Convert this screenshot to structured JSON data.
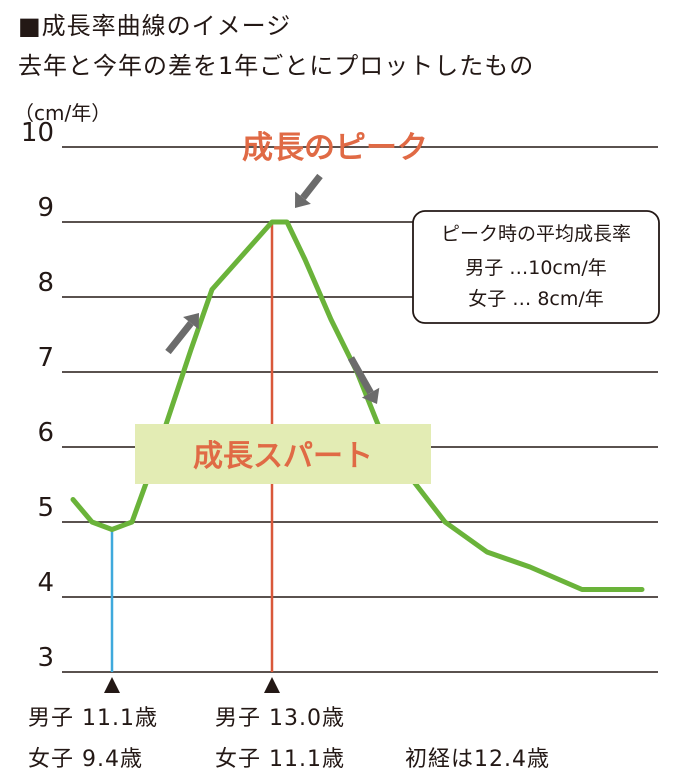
{
  "header": {
    "title": "■成長率曲線のイメージ",
    "subtitle": "去年と今年の差を1年ごとにプロットしたもの"
  },
  "chart_data": {
    "type": "line",
    "ylabel": "（cm/年）",
    "ylim": [
      3,
      10
    ],
    "yticks": [
      "10",
      "9",
      "8",
      "7",
      "6",
      "5",
      "4",
      "3"
    ],
    "grid": true,
    "series": [
      {
        "color": "#6ab33a",
        "values": [
          [
            0,
            5.3
          ],
          [
            1,
            5.0
          ],
          [
            2,
            4.9
          ],
          [
            3,
            5.0
          ],
          [
            4,
            5.7
          ],
          [
            5,
            6.5
          ],
          [
            6,
            7.3
          ],
          [
            7,
            8.1
          ],
          [
            8,
            9.0
          ],
          [
            9,
            9.0
          ],
          [
            10,
            8.5
          ],
          [
            11,
            7.7
          ],
          [
            12,
            7.0
          ],
          [
            13,
            6.0
          ],
          [
            14,
            5.0
          ],
          [
            15,
            4.6
          ],
          [
            16,
            4.4
          ],
          [
            17,
            4.1
          ],
          [
            18,
            4.1
          ]
        ]
      }
    ],
    "annotations": {
      "peak_label": "成長のピーク",
      "spurt_label": "成長スパート",
      "peak_box_lines": [
        "ピーク時の平均成長率",
        "男子 …10cm/年",
        "女子 … 8cm/年"
      ]
    }
  },
  "footnotes": {
    "row1_left": "男子 11.1歳",
    "row1_mid": "男子 13.0歳",
    "row2_left": "女子  9.4歳",
    "row2_mid": "女子 11.1歳",
    "row2_right": "初経は12.4歳"
  },
  "colors": {
    "curve": "#6ab33a",
    "peak_line": "#d9583a",
    "spurt_line": "#3fa9dc",
    "accent_text": "#e06a45",
    "spurt_bg": "#e3ecb4",
    "arrow": "#6b6b6b"
  }
}
